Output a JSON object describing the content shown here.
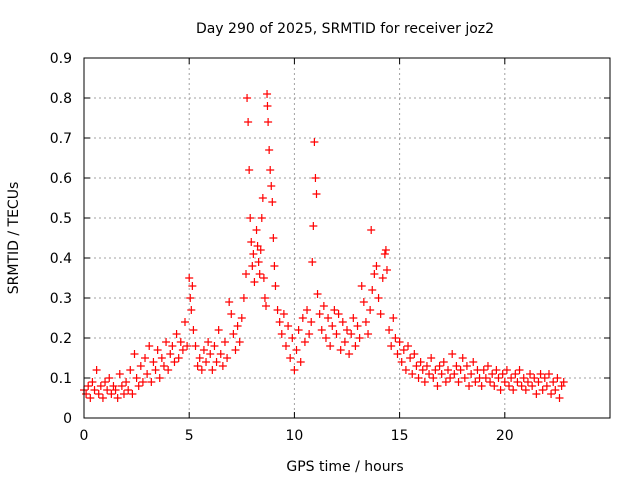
{
  "chart_data": {
    "type": "scatter",
    "title": "Day 290 of 2025, SRMTID for receiver joz2",
    "xlabel": "GPS time / hours",
    "ylabel": "SRMTID / TECUs",
    "xlim": [
      0,
      25
    ],
    "ylim": [
      0,
      0.9
    ],
    "xticks": [
      0,
      5,
      10,
      15,
      20
    ],
    "yticks": [
      0,
      0.1,
      0.2,
      0.3,
      0.4,
      0.5,
      0.6,
      0.7,
      0.8,
      0.9
    ],
    "grid": true,
    "marker": "+",
    "color": "#ff0000",
    "series": [
      {
        "name": "SRMTID",
        "points": [
          [
            0.0,
            0.07
          ],
          [
            0.1,
            0.06
          ],
          [
            0.2,
            0.08
          ],
          [
            0.3,
            0.05
          ],
          [
            0.4,
            0.09
          ],
          [
            0.5,
            0.07
          ],
          [
            0.6,
            0.12
          ],
          [
            0.7,
            0.06
          ],
          [
            0.8,
            0.08
          ],
          [
            0.9,
            0.05
          ],
          [
            1.0,
            0.09
          ],
          [
            1.1,
            0.07
          ],
          [
            1.2,
            0.1
          ],
          [
            1.3,
            0.06
          ],
          [
            1.4,
            0.08
          ],
          [
            1.5,
            0.07
          ],
          [
            1.6,
            0.05
          ],
          [
            1.7,
            0.11
          ],
          [
            1.8,
            0.08
          ],
          [
            1.9,
            0.06
          ],
          [
            2.0,
            0.09
          ],
          [
            2.1,
            0.07
          ],
          [
            2.2,
            0.12
          ],
          [
            2.3,
            0.06
          ],
          [
            2.4,
            0.16
          ],
          [
            2.5,
            0.1
          ],
          [
            2.6,
            0.08
          ],
          [
            2.7,
            0.13
          ],
          [
            2.8,
            0.09
          ],
          [
            2.9,
            0.15
          ],
          [
            3.0,
            0.11
          ],
          [
            3.1,
            0.18
          ],
          [
            3.2,
            0.09
          ],
          [
            3.3,
            0.14
          ],
          [
            3.4,
            0.12
          ],
          [
            3.5,
            0.17
          ],
          [
            3.6,
            0.1
          ],
          [
            3.7,
            0.15
          ],
          [
            3.8,
            0.13
          ],
          [
            3.9,
            0.19
          ],
          [
            4.0,
            0.12
          ],
          [
            4.1,
            0.16
          ],
          [
            4.2,
            0.18
          ],
          [
            4.3,
            0.14
          ],
          [
            4.4,
            0.21
          ],
          [
            4.5,
            0.15
          ],
          [
            4.6,
            0.19
          ],
          [
            4.7,
            0.17
          ],
          [
            4.8,
            0.24
          ],
          [
            4.9,
            0.18
          ],
          [
            5.0,
            0.35
          ],
          [
            5.05,
            0.3
          ],
          [
            5.1,
            0.27
          ],
          [
            5.15,
            0.33
          ],
          [
            5.2,
            0.22
          ],
          [
            5.3,
            0.18
          ],
          [
            5.4,
            0.13
          ],
          [
            5.5,
            0.15
          ],
          [
            5.6,
            0.12
          ],
          [
            5.7,
            0.17
          ],
          [
            5.8,
            0.14
          ],
          [
            5.9,
            0.19
          ],
          [
            6.0,
            0.16
          ],
          [
            6.1,
            0.12
          ],
          [
            6.2,
            0.18
          ],
          [
            6.3,
            0.14
          ],
          [
            6.4,
            0.22
          ],
          [
            6.5,
            0.16
          ],
          [
            6.6,
            0.13
          ],
          [
            6.7,
            0.19
          ],
          [
            6.8,
            0.15
          ],
          [
            6.9,
            0.29
          ],
          [
            7.0,
            0.26
          ],
          [
            7.1,
            0.21
          ],
          [
            7.2,
            0.17
          ],
          [
            7.3,
            0.23
          ],
          [
            7.4,
            0.19
          ],
          [
            7.5,
            0.25
          ],
          [
            7.6,
            0.3
          ],
          [
            7.7,
            0.36
          ],
          [
            7.75,
            0.8
          ],
          [
            7.8,
            0.74
          ],
          [
            7.85,
            0.62
          ],
          [
            7.9,
            0.5
          ],
          [
            7.95,
            0.44
          ],
          [
            8.0,
            0.38
          ],
          [
            8.05,
            0.41
          ],
          [
            8.1,
            0.34
          ],
          [
            8.2,
            0.47
          ],
          [
            8.25,
            0.43
          ],
          [
            8.3,
            0.39
          ],
          [
            8.35,
            0.36
          ],
          [
            8.4,
            0.42
          ],
          [
            8.45,
            0.5
          ],
          [
            8.5,
            0.55
          ],
          [
            8.55,
            0.35
          ],
          [
            8.6,
            0.3
          ],
          [
            8.65,
            0.28
          ],
          [
            8.7,
            0.81
          ],
          [
            8.72,
            0.78
          ],
          [
            8.75,
            0.74
          ],
          [
            8.8,
            0.67
          ],
          [
            8.85,
            0.62
          ],
          [
            8.9,
            0.58
          ],
          [
            8.95,
            0.54
          ],
          [
            9.0,
            0.45
          ],
          [
            9.05,
            0.38
          ],
          [
            9.1,
            0.33
          ],
          [
            9.2,
            0.27
          ],
          [
            9.3,
            0.24
          ],
          [
            9.4,
            0.21
          ],
          [
            9.5,
            0.26
          ],
          [
            9.6,
            0.18
          ],
          [
            9.7,
            0.23
          ],
          [
            9.8,
            0.15
          ],
          [
            9.9,
            0.2
          ],
          [
            10.0,
            0.12
          ],
          [
            10.1,
            0.17
          ],
          [
            10.2,
            0.22
          ],
          [
            10.3,
            0.14
          ],
          [
            10.4,
            0.25
          ],
          [
            10.5,
            0.19
          ],
          [
            10.6,
            0.27
          ],
          [
            10.7,
            0.21
          ],
          [
            10.8,
            0.24
          ],
          [
            10.85,
            0.39
          ],
          [
            10.9,
            0.48
          ],
          [
            10.95,
            0.69
          ],
          [
            11.0,
            0.6
          ],
          [
            11.05,
            0.56
          ],
          [
            11.1,
            0.31
          ],
          [
            11.2,
            0.26
          ],
          [
            11.3,
            0.22
          ],
          [
            11.4,
            0.28
          ],
          [
            11.5,
            0.2
          ],
          [
            11.6,
            0.25
          ],
          [
            11.7,
            0.18
          ],
          [
            11.8,
            0.23
          ],
          [
            11.9,
            0.27
          ],
          [
            12.0,
            0.21
          ],
          [
            12.1,
            0.26
          ],
          [
            12.2,
            0.17
          ],
          [
            12.3,
            0.24
          ],
          [
            12.4,
            0.19
          ],
          [
            12.5,
            0.22
          ],
          [
            12.6,
            0.16
          ],
          [
            12.7,
            0.21
          ],
          [
            12.8,
            0.25
          ],
          [
            12.9,
            0.18
          ],
          [
            13.0,
            0.23
          ],
          [
            13.1,
            0.2
          ],
          [
            13.2,
            0.33
          ],
          [
            13.3,
            0.29
          ],
          [
            13.4,
            0.24
          ],
          [
            13.5,
            0.21
          ],
          [
            13.6,
            0.27
          ],
          [
            13.65,
            0.47
          ],
          [
            13.7,
            0.32
          ],
          [
            13.8,
            0.36
          ],
          [
            13.9,
            0.38
          ],
          [
            14.0,
            0.3
          ],
          [
            14.1,
            0.26
          ],
          [
            14.2,
            0.35
          ],
          [
            14.3,
            0.41
          ],
          [
            14.35,
            0.42
          ],
          [
            14.4,
            0.37
          ],
          [
            14.5,
            0.22
          ],
          [
            14.6,
            0.18
          ],
          [
            14.7,
            0.25
          ],
          [
            14.8,
            0.2
          ],
          [
            14.9,
            0.16
          ],
          [
            15.0,
            0.19
          ],
          [
            15.1,
            0.14
          ],
          [
            15.2,
            0.17
          ],
          [
            15.3,
            0.12
          ],
          [
            15.4,
            0.18
          ],
          [
            15.5,
            0.15
          ],
          [
            15.6,
            0.11
          ],
          [
            15.7,
            0.16
          ],
          [
            15.8,
            0.13
          ],
          [
            15.9,
            0.1
          ],
          [
            16.0,
            0.14
          ],
          [
            16.1,
            0.12
          ],
          [
            16.2,
            0.09
          ],
          [
            16.3,
            0.13
          ],
          [
            16.4,
            0.11
          ],
          [
            16.5,
            0.15
          ],
          [
            16.6,
            0.1
          ],
          [
            16.7,
            0.12
          ],
          [
            16.8,
            0.08
          ],
          [
            16.9,
            0.13
          ],
          [
            17.0,
            0.11
          ],
          [
            17.1,
            0.14
          ],
          [
            17.2,
            0.09
          ],
          [
            17.3,
            0.12
          ],
          [
            17.4,
            0.1
          ],
          [
            17.5,
            0.16
          ],
          [
            17.6,
            0.11
          ],
          [
            17.7,
            0.13
          ],
          [
            17.8,
            0.09
          ],
          [
            17.9,
            0.12
          ],
          [
            18.0,
            0.15
          ],
          [
            18.1,
            0.1
          ],
          [
            18.2,
            0.13
          ],
          [
            18.3,
            0.08
          ],
          [
            18.4,
            0.11
          ],
          [
            18.5,
            0.14
          ],
          [
            18.6,
            0.09
          ],
          [
            18.7,
            0.12
          ],
          [
            18.8,
            0.1
          ],
          [
            18.9,
            0.08
          ],
          [
            19.0,
            0.12
          ],
          [
            19.1,
            0.1
          ],
          [
            19.2,
            0.13
          ],
          [
            19.3,
            0.09
          ],
          [
            19.4,
            0.11
          ],
          [
            19.5,
            0.08
          ],
          [
            19.6,
            0.12
          ],
          [
            19.7,
            0.1
          ],
          [
            19.8,
            0.07
          ],
          [
            19.9,
            0.11
          ],
          [
            20.0,
            0.09
          ],
          [
            20.1,
            0.12
          ],
          [
            20.2,
            0.08
          ],
          [
            20.3,
            0.1
          ],
          [
            20.4,
            0.07
          ],
          [
            20.5,
            0.11
          ],
          [
            20.6,
            0.09
          ],
          [
            20.7,
            0.12
          ],
          [
            20.8,
            0.08
          ],
          [
            20.9,
            0.1
          ],
          [
            21.0,
            0.07
          ],
          [
            21.1,
            0.09
          ],
          [
            21.2,
            0.11
          ],
          [
            21.3,
            0.08
          ],
          [
            21.4,
            0.1
          ],
          [
            21.5,
            0.06
          ],
          [
            21.6,
            0.09
          ],
          [
            21.7,
            0.11
          ],
          [
            21.8,
            0.07
          ],
          [
            21.9,
            0.1
          ],
          [
            22.0,
            0.08
          ],
          [
            22.1,
            0.11
          ],
          [
            22.2,
            0.06
          ],
          [
            22.3,
            0.09
          ],
          [
            22.4,
            0.07
          ],
          [
            22.5,
            0.1
          ],
          [
            22.6,
            0.05
          ],
          [
            22.7,
            0.08
          ],
          [
            22.8,
            0.09
          ]
        ]
      }
    ]
  }
}
